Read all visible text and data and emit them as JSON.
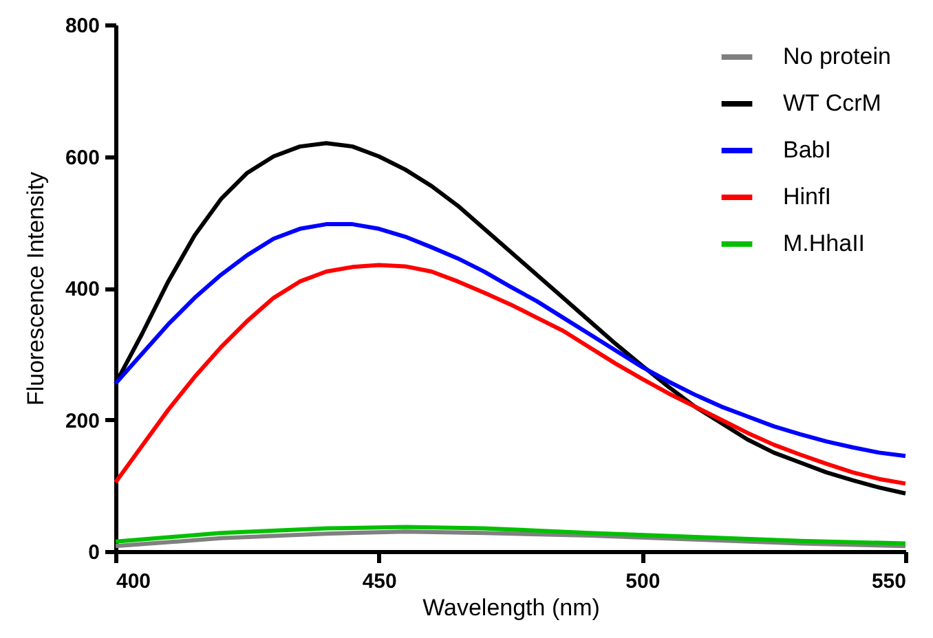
{
  "chart_data": {
    "type": "line",
    "xlabel": "Wavelength (nm)",
    "ylabel": "Fluorescence Intensity",
    "x": [
      400,
      405,
      410,
      415,
      420,
      425,
      430,
      435,
      440,
      445,
      450,
      455,
      460,
      465,
      470,
      475,
      480,
      485,
      490,
      495,
      500,
      505,
      510,
      515,
      520,
      525,
      530,
      535,
      540,
      545,
      550
    ],
    "xlim": [
      400,
      550
    ],
    "xticks": [
      400,
      450,
      500,
      550
    ],
    "ylim": [
      0,
      800
    ],
    "yticks": [
      0,
      200,
      400,
      600,
      800
    ],
    "grid": false,
    "legend": "top right",
    "marker": "none",
    "line_style": "solid",
    "series": [
      {
        "name": "No protein",
        "color": "#808080",
        "x": [
          400,
          420,
          440,
          455,
          470,
          490,
          510,
          530,
          550
        ],
        "values": [
          8,
          20,
          27,
          30,
          28,
          24,
          18,
          12,
          8
        ]
      },
      {
        "name": "WT CcrM",
        "color": "#000000",
        "values": [
          255,
          330,
          410,
          480,
          535,
          575,
          600,
          615,
          620,
          615,
          600,
          580,
          555,
          525,
          490,
          455,
          420,
          385,
          350,
          315,
          282,
          250,
          220,
          195,
          170,
          150,
          135,
          120,
          108,
          97,
          88
        ]
      },
      {
        "name": "BabI",
        "color": "#0000ff",
        "values": [
          255,
          300,
          345,
          385,
          420,
          450,
          475,
          490,
          497,
          497,
          490,
          478,
          462,
          445,
          425,
          402,
          380,
          355,
          330,
          305,
          280,
          258,
          238,
          220,
          205,
          190,
          178,
          167,
          158,
          150,
          145
        ]
      },
      {
        "name": "HinfI",
        "color": "#ff0000",
        "values": [
          105,
          160,
          215,
          265,
          310,
          350,
          385,
          410,
          425,
          432,
          435,
          433,
          425,
          410,
          393,
          375,
          355,
          335,
          310,
          285,
          262,
          240,
          220,
          200,
          180,
          162,
          147,
          133,
          120,
          110,
          103
        ]
      },
      {
        "name": "M.HhaII",
        "color": "#00c000",
        "x": [
          400,
          420,
          440,
          455,
          470,
          490,
          510,
          530,
          550
        ],
        "values": [
          15,
          28,
          35,
          37,
          35,
          28,
          22,
          16,
          12
        ]
      }
    ]
  }
}
